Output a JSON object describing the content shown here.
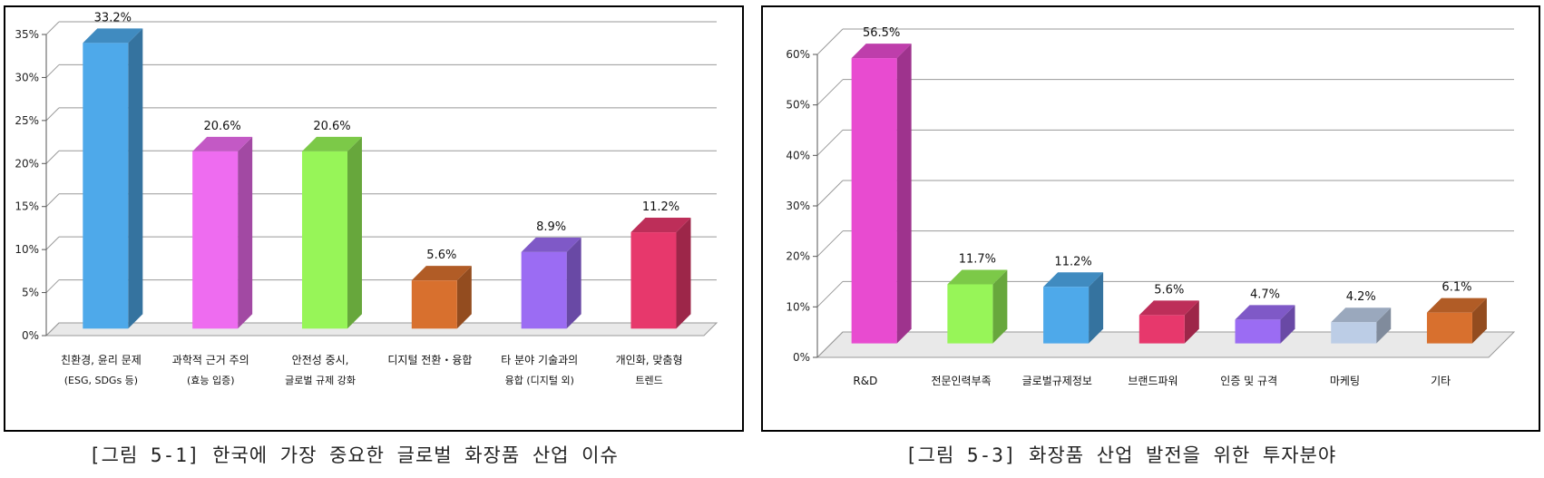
{
  "chart_data": [
    {
      "type": "bar",
      "caption": "[그림 5-1] 한국에 가장 중요한 글로벌 화장품 산업 이슈",
      "categories": [
        [
          "친환경, 윤리 문제",
          "(ESG, SDGs 등)"
        ],
        [
          "과학적 근거 주의",
          "(효능 입증)"
        ],
        [
          "안전성 중시,",
          "글로벌 규제 강화"
        ],
        [
          "디지털 전환・융합"
        ],
        [
          "타 분야 기술과의",
          "융합 (디지털 외)"
        ],
        [
          "개인화, 맞춤형",
          "트렌드"
        ]
      ],
      "values": [
        33.2,
        20.6,
        20.6,
        5.6,
        8.9,
        11.2
      ],
      "value_labels": [
        "33.2%",
        "20.6%",
        "20.6%",
        "5.6%",
        "8.9%",
        "11.2%"
      ],
      "colors": [
        "#4ea9ea",
        "#ee6cf0",
        "#97f558",
        "#d8702e",
        "#9b6cf3",
        "#e7386c"
      ],
      "ylim": [
        0,
        35
      ],
      "yticks": [
        0,
        5,
        10,
        15,
        20,
        25,
        30,
        35
      ],
      "ytick_labels": [
        "0%",
        "5%",
        "10%",
        "15%",
        "20%",
        "25%",
        "30%",
        "35%"
      ],
      "grid": true,
      "legend": "none"
    },
    {
      "type": "bar",
      "caption": "[그림 5-3] 화장품 산업 발전을 위한 투자분야",
      "categories": [
        [
          "R&D"
        ],
        [
          "전문인력부족"
        ],
        [
          "글로벌규제정보"
        ],
        [
          "브랜드파워"
        ],
        [
          "인증 및 규격"
        ],
        [
          "마케팅"
        ],
        [
          "기타"
        ]
      ],
      "values": [
        56.5,
        11.7,
        11.2,
        5.6,
        4.7,
        4.2,
        6.1
      ],
      "value_labels": [
        "56.5%",
        "11.7%",
        "11.2%",
        "5.6%",
        "4.7%",
        "4.2%",
        "6.1%"
      ],
      "colors": [
        "#e84bd0",
        "#97f558",
        "#4ea9ea",
        "#e7386c",
        "#9b6cf3",
        "#bccde6",
        "#d8702e"
      ],
      "ylim": [
        0,
        60
      ],
      "yticks": [
        0,
        10,
        20,
        30,
        40,
        50,
        60
      ],
      "ytick_labels": [
        "0%",
        "10%",
        "20%",
        "30%",
        "40%",
        "50%",
        "60%"
      ],
      "grid": true,
      "legend": "none"
    }
  ]
}
